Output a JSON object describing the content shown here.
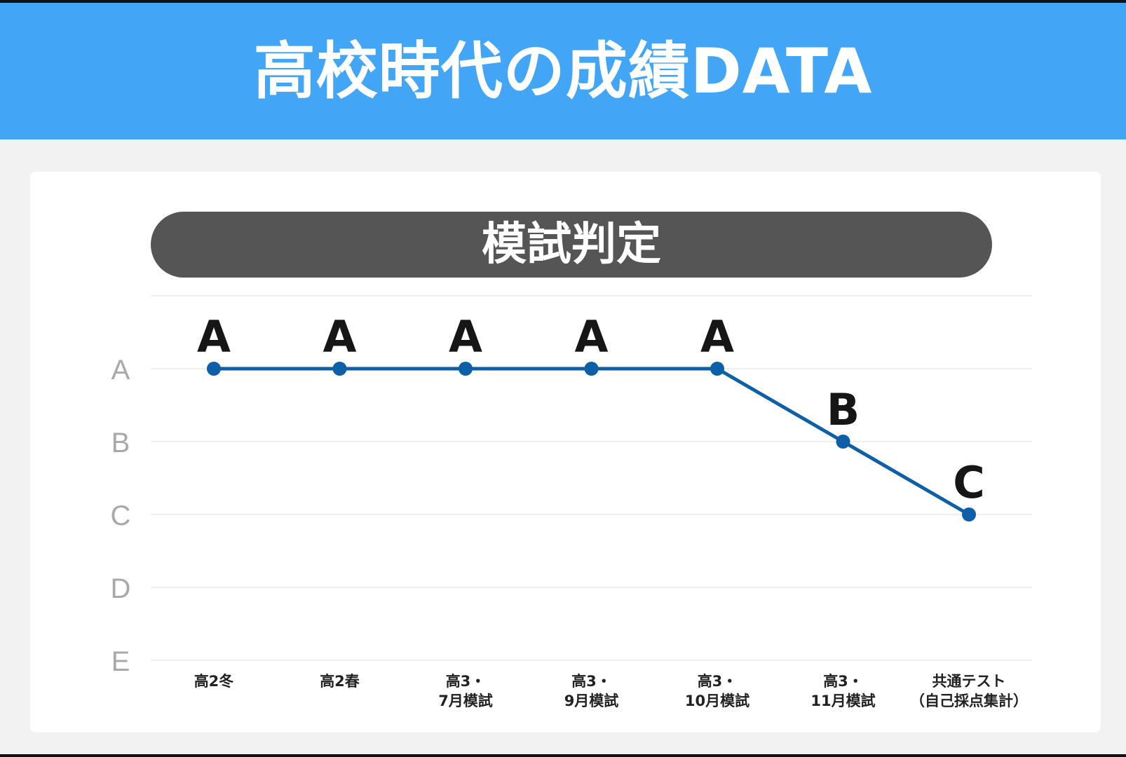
{
  "page": {
    "title": "高校時代の成績DATA",
    "colors": {
      "header_bg": "#42a5f5",
      "pill_bg": "#555555",
      "line": "#0d5fa8"
    }
  },
  "chart_data": {
    "type": "line",
    "title": "模試判定",
    "y_categories": [
      "A",
      "B",
      "C",
      "D",
      "E"
    ],
    "categories": [
      [
        "高2冬"
      ],
      [
        "高2春"
      ],
      [
        "高3・",
        "7月模試"
      ],
      [
        "高3・",
        "9月模試"
      ],
      [
        "高3・",
        "10月模試"
      ],
      [
        "高3・",
        "11月模試"
      ],
      [
        "共通テスト",
        "（自己採点集計）"
      ]
    ],
    "series": [
      {
        "values": [
          "A",
          "A",
          "A",
          "A",
          "A",
          "B",
          "C"
        ]
      }
    ],
    "data_labels": [
      "A",
      "A",
      "A",
      "A",
      "A",
      "B",
      "C"
    ],
    "grid": true,
    "legend": "none"
  }
}
